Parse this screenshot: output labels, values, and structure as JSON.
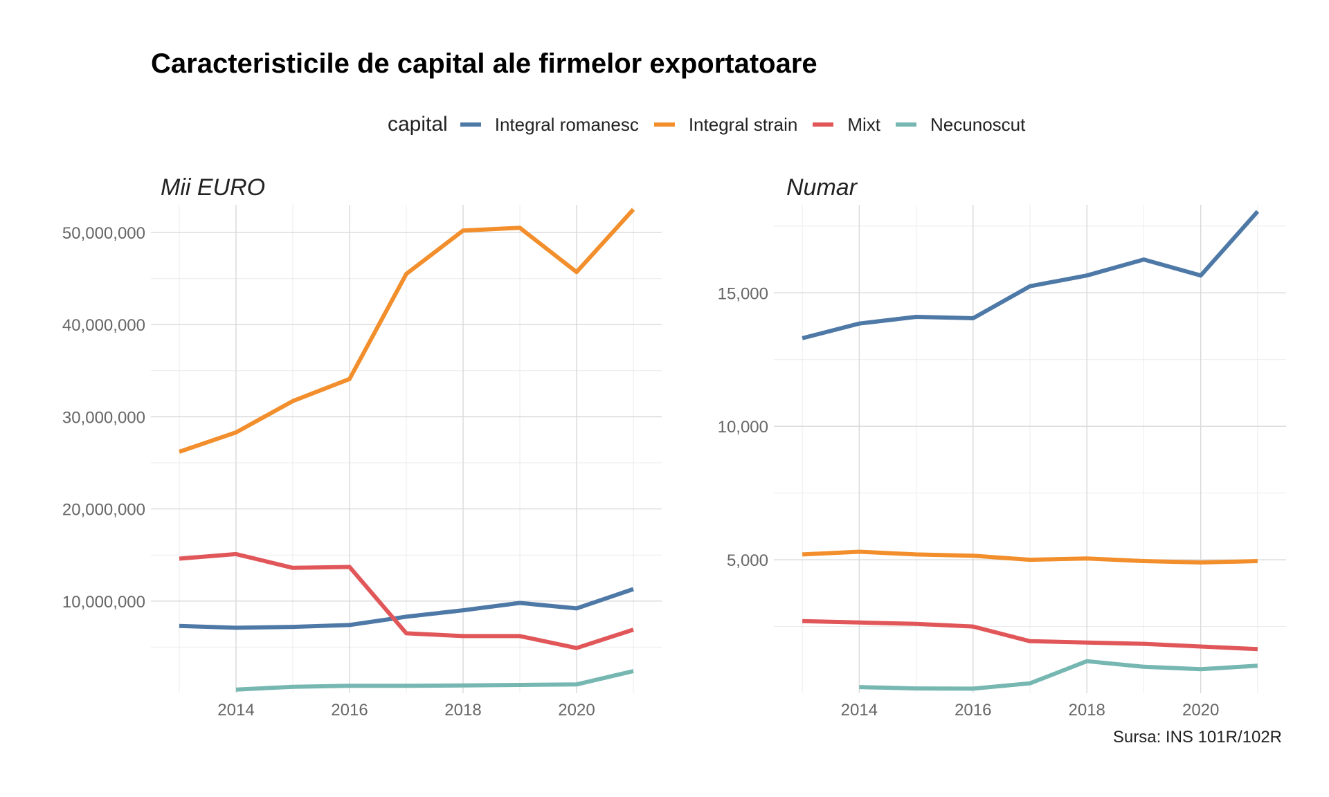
{
  "title": "Caracteristicile de capital ale firmelor exportatoare",
  "caption": "Sursa: INS 101R/102R",
  "legend": {
    "title": "capital",
    "items": [
      {
        "label": "Integral romanesc",
        "color": "#4E79A7"
      },
      {
        "label": "Integral strain",
        "color": "#F28E2B"
      },
      {
        "label": "Mixt",
        "color": "#E15759"
      },
      {
        "label": "Necunoscut",
        "color": "#76B7B2"
      }
    ]
  },
  "chart_data": [
    {
      "type": "line",
      "title": "Mii EURO",
      "xlabel": "",
      "ylabel": "",
      "x": [
        2013,
        2014,
        2015,
        2016,
        2017,
        2018,
        2019,
        2020,
        2021
      ],
      "xlim": [
        2012.5,
        2021.5
      ],
      "ylim": [
        0,
        53000000
      ],
      "xticks": [
        2014,
        2016,
        2018,
        2020
      ],
      "xtick_labels": [
        "2014",
        "2016",
        "2018",
        "2020"
      ],
      "yticks": [
        10000000,
        20000000,
        30000000,
        40000000,
        50000000
      ],
      "ytick_labels": [
        "10,000,000",
        "20,000,000",
        "30,000,000",
        "40,000,000",
        "50,000,000"
      ],
      "grid": true,
      "series": [
        {
          "name": "Integral romanesc",
          "color": "#4E79A7",
          "values": [
            7300000,
            7100000,
            7200000,
            7400000,
            8300000,
            9000000,
            9800000,
            9200000,
            11300000
          ]
        },
        {
          "name": "Integral strain",
          "color": "#F28E2B",
          "values": [
            26200000,
            28300000,
            31700000,
            34100000,
            45500000,
            50200000,
            50500000,
            45700000,
            52500000
          ]
        },
        {
          "name": "Mixt",
          "color": "#E15759",
          "values": [
            14600000,
            15100000,
            13600000,
            13700000,
            6500000,
            6200000,
            6200000,
            4900000,
            6900000
          ]
        },
        {
          "name": "Necunoscut",
          "color": "#76B7B2",
          "values": [
            null,
            400000,
            700000,
            800000,
            800000,
            850000,
            900000,
            950000,
            2400000
          ]
        }
      ]
    },
    {
      "type": "line",
      "title": "Numar",
      "xlabel": "",
      "ylabel": "",
      "x": [
        2013,
        2014,
        2015,
        2016,
        2017,
        2018,
        2019,
        2020,
        2021
      ],
      "xlim": [
        2012.5,
        2021.5
      ],
      "ylim": [
        0,
        18300
      ],
      "xticks": [
        2014,
        2016,
        2018,
        2020
      ],
      "xtick_labels": [
        "2014",
        "2016",
        "2018",
        "2020"
      ],
      "yticks": [
        5000,
        10000,
        15000
      ],
      "ytick_labels": [
        "5,000",
        "10,000",
        "15,000"
      ],
      "grid": true,
      "series": [
        {
          "name": "Integral romanesc",
          "color": "#4E79A7",
          "values": [
            13300,
            13850,
            14100,
            14050,
            15250,
            15650,
            16250,
            15650,
            18050
          ]
        },
        {
          "name": "Integral strain",
          "color": "#F28E2B",
          "values": [
            5200,
            5300,
            5200,
            5150,
            5000,
            5050,
            4950,
            4900,
            4950
          ]
        },
        {
          "name": "Mixt",
          "color": "#E15759",
          "values": [
            2700,
            2650,
            2600,
            2500,
            1950,
            1900,
            1850,
            1750,
            1650
          ]
        },
        {
          "name": "Necunoscut",
          "color": "#76B7B2",
          "values": [
            null,
            230,
            180,
            170,
            370,
            1200,
            990,
            900,
            1030
          ]
        }
      ]
    }
  ]
}
